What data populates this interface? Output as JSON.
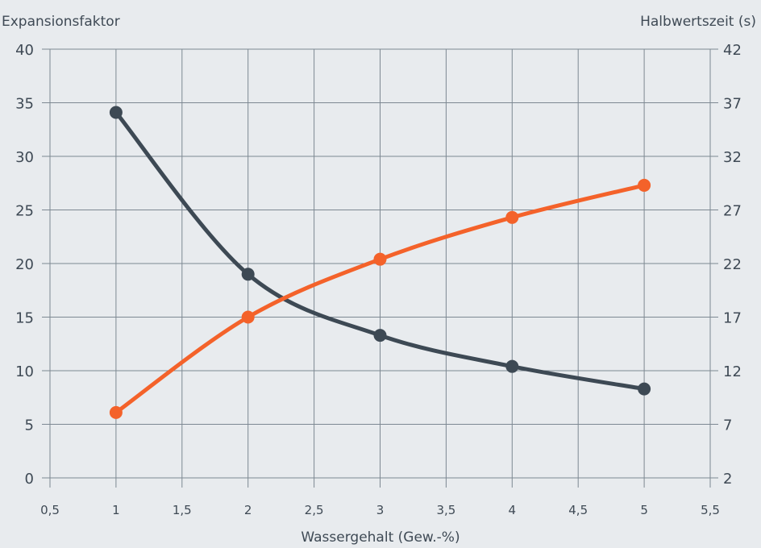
{
  "chart_data": {
    "type": "line",
    "xlabel": "Wassergehalt (Gew.-%)",
    "ylabel_left": "Expansionsfaktor",
    "ylabel_right": "Halbwertszeit (s)",
    "xlim": [
      0.5,
      5.5
    ],
    "ylim_left": [
      0,
      40
    ],
    "ylim_right": [
      2,
      42
    ],
    "x_ticks": [
      "0,5",
      "1",
      "1,5",
      "2",
      "2,5",
      "3",
      "3,5",
      "4",
      "4,5",
      "5",
      "5,5"
    ],
    "y_left_ticks": [
      "0",
      "5",
      "10",
      "15",
      "20",
      "25",
      "30",
      "35",
      "40"
    ],
    "y_right_ticks": [
      "2",
      "7",
      "12",
      "17",
      "22",
      "27",
      "32",
      "37",
      "42"
    ],
    "grid": true,
    "series": [
      {
        "axis": "left",
        "color": "#3d4954",
        "x": [
          1,
          2,
          3,
          4,
          5
        ],
        "values": [
          34.1,
          19.0,
          13.3,
          10.4,
          8.3
        ]
      },
      {
        "axis": "right",
        "color": "#f4622a",
        "x": [
          1,
          2,
          3,
          4,
          5
        ],
        "values": [
          8.1,
          17.0,
          22.4,
          26.3,
          29.3
        ]
      }
    ]
  }
}
